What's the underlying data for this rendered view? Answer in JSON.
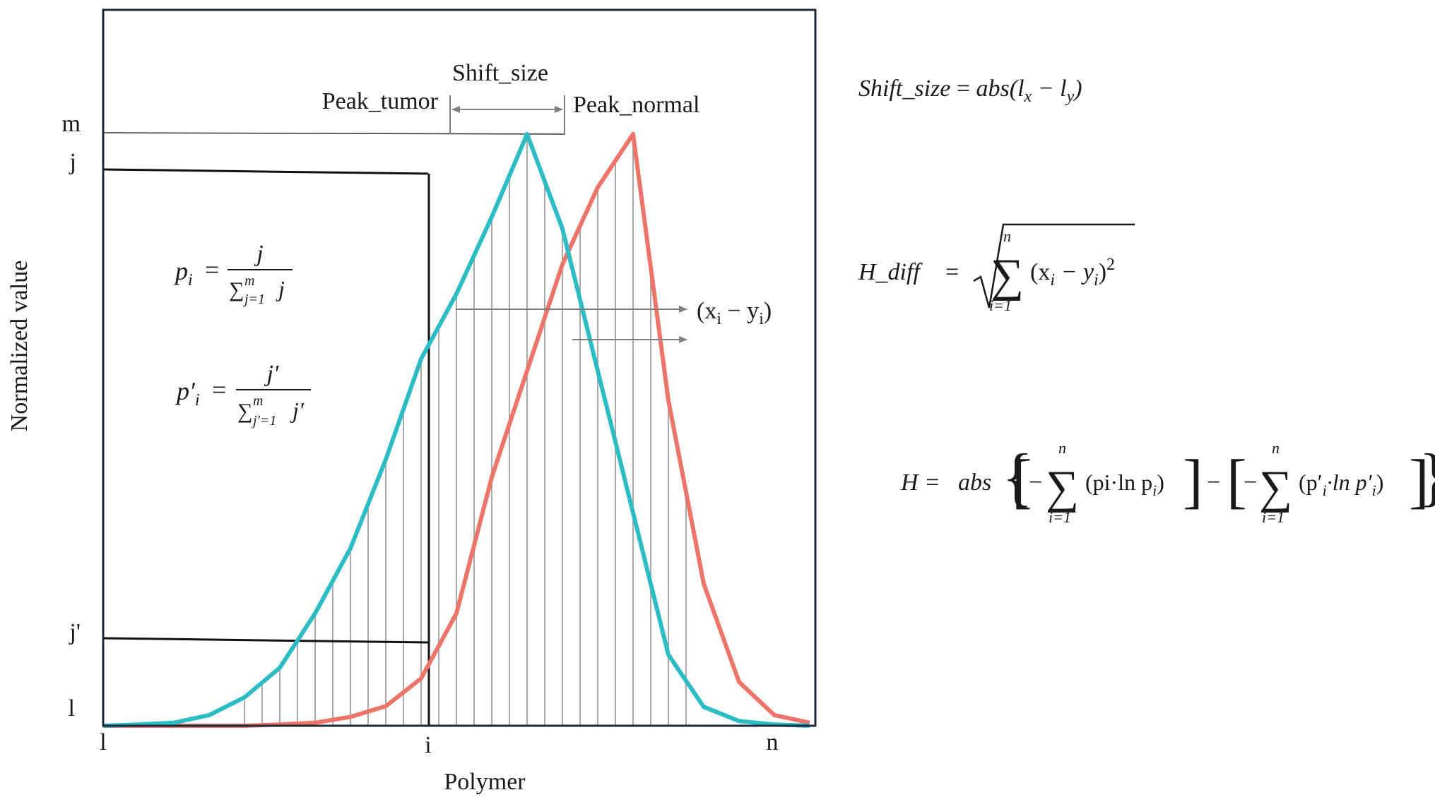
{
  "chart_data": {
    "type": "line",
    "xlabel": "Polymer",
    "ylabel": "Normalized value",
    "x_ticks": [
      "l",
      "i",
      "n"
    ],
    "y_ticks": [
      "m",
      "j",
      "j'",
      "l"
    ],
    "x_range": [
      0,
      20
    ],
    "y_range": [
      0,
      1
    ],
    "series": [
      {
        "name": "Peak_tumor",
        "color": "#2bbcc4",
        "points": [
          [
            0,
            0
          ],
          [
            1,
            0.002
          ],
          [
            2,
            0.005
          ],
          [
            3,
            0.018
          ],
          [
            4,
            0.048
          ],
          [
            5,
            0.098
          ],
          [
            6,
            0.19
          ],
          [
            7,
            0.3
          ],
          [
            8,
            0.45
          ],
          [
            9,
            0.62
          ],
          [
            10,
            0.73
          ],
          [
            11,
            0.86
          ],
          [
            12,
            1.0
          ],
          [
            13,
            0.84
          ],
          [
            14,
            0.6
          ],
          [
            15,
            0.36
          ],
          [
            16,
            0.12
          ],
          [
            17,
            0.032
          ],
          [
            18,
            0.008
          ],
          [
            19,
            0.002
          ],
          [
            20,
            0
          ]
        ]
      },
      {
        "name": "Peak_normal",
        "color": "#ec7469",
        "points": [
          [
            0,
            0
          ],
          [
            4,
            0
          ],
          [
            5,
            0.002
          ],
          [
            6,
            0.005
          ],
          [
            7,
            0.015
          ],
          [
            8,
            0.033
          ],
          [
            9,
            0.08
          ],
          [
            10,
            0.19
          ],
          [
            11,
            0.42
          ],
          [
            12,
            0.6
          ],
          [
            13,
            0.78
          ],
          [
            14,
            0.91
          ],
          [
            15,
            1.0
          ],
          [
            16,
            0.55
          ],
          [
            17,
            0.24
          ],
          [
            18,
            0.074
          ],
          [
            19,
            0.018
          ],
          [
            20,
            0.005
          ]
        ]
      }
    ],
    "annotations": {
      "peak_tumor_label": "Peak_tumor",
      "peak_normal_label": "Peak_normal",
      "shift_label": "Shift_size",
      "diff_label": "(x",
      "diff_sub1": "i",
      "diff_mid": " − y",
      "diff_sub2": "i",
      "diff_close": ")"
    },
    "grid": false,
    "legend": "none"
  },
  "colors": {
    "tumor": "#2bbcc4",
    "normal": "#ec7469",
    "frame": "#1e2a3a",
    "hatch": "#a9a9a9",
    "arrow": "#808080"
  },
  "formulas": {
    "p_i": {
      "lhs": "p",
      "lhs_sub": "i",
      "num": "j",
      "den_sum": "∑",
      "den_sup": "m",
      "den_sub": "j=1",
      "den_var": "j"
    },
    "p_prime_i": {
      "lhs": "p′",
      "lhs_sub": "i",
      "num": "j′",
      "den_sum": "∑",
      "den_sup": "m",
      "den_sub": "j′=1",
      "den_var": "j′"
    },
    "shift_size": {
      "lhs": "Shift_size",
      "eq": " = ",
      "fn": "abs(l",
      "sub1": "x",
      "mid": " − l",
      "sub2": "y",
      "close": ")"
    },
    "h_diff": {
      "lhs": "H_diff",
      "eq": "=",
      "sum_sup": "n",
      "sum_sub": "i=1",
      "body": "(x",
      "sub1": "i",
      "mid": " − y",
      "sub2": "i",
      "close": ")",
      "power": "2"
    },
    "h": {
      "lhs": "H =",
      "fn": "abs",
      "sum_sup": "n",
      "sum_sub": "i=1",
      "term1": "(pi·ln p",
      "term1_sub": "i",
      "term1_close": ")",
      "term2": "(p′",
      "term2_sub1": "i",
      "term2_mid": "·ln p′",
      "term2_sub2": "i",
      "term2_close": ")",
      "minus": "−"
    }
  }
}
